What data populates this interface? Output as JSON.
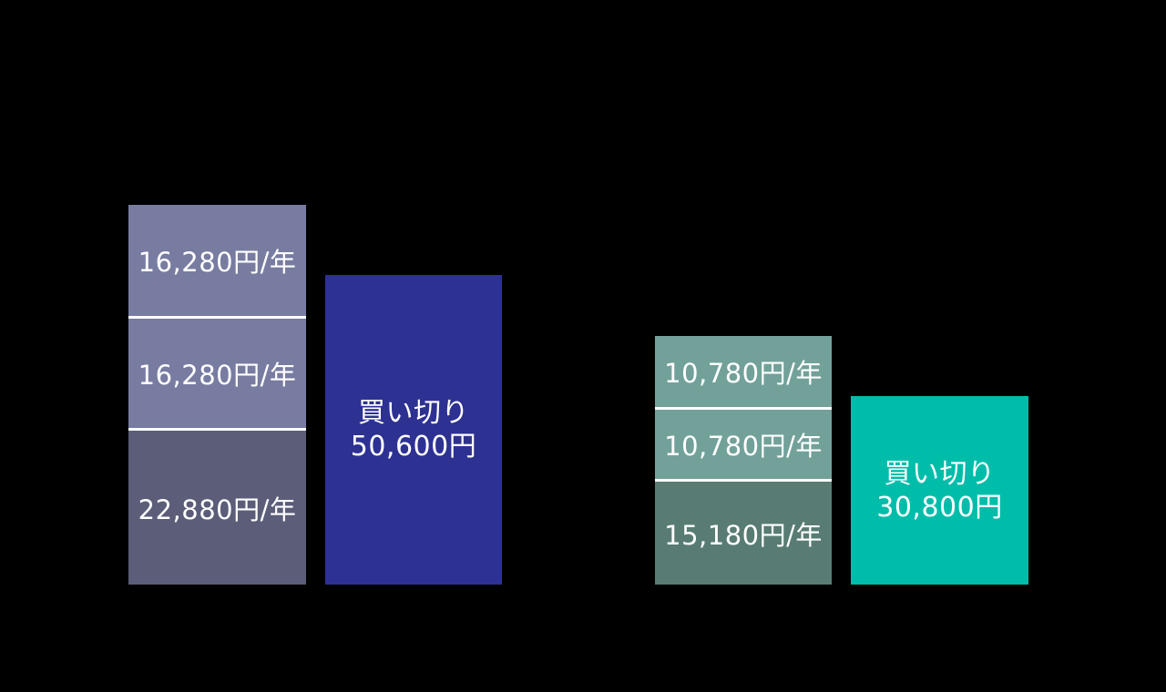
{
  "page": {
    "background_color": "#000000",
    "text_color": "#ffffff",
    "divider_color": "#ffffff"
  },
  "chart_data": {
    "type": "bar",
    "subtype": "stacked-vs-single-comparison",
    "title": "",
    "xlabel": "",
    "ylabel": "",
    "legend": "none",
    "grid": false,
    "axes_visible": false,
    "unit": "JPY",
    "groups": [
      {
        "name": "left-comparison",
        "accent_color": "#2D3192",
        "stacked_bar": {
          "total": 55440,
          "segments": [
            {
              "label": "16,280円/年",
              "value": 16280,
              "color": "#787CA1"
            },
            {
              "label": "16,280円/年",
              "value": 16280,
              "color": "#787CA1"
            },
            {
              "label": "22,880円/年",
              "value": 22880,
              "color": "#5B5D79"
            }
          ]
        },
        "solid_bar": {
          "label_line1": "買い切り",
          "label_line2": "50,600円",
          "value": 50600,
          "color": "#2D3192"
        }
      },
      {
        "name": "right-comparison",
        "accent_color": "#00BDAA",
        "stacked_bar": {
          "total": 36740,
          "segments": [
            {
              "label": "10,780円/年",
              "value": 10780,
              "color": "#72A19A"
            },
            {
              "label": "10,780円/年",
              "value": 10780,
              "color": "#72A19A"
            },
            {
              "label": "15,180円/年",
              "value": 15180,
              "color": "#587C74"
            }
          ]
        },
        "solid_bar": {
          "label_line1": "買い切り",
          "label_line2": "30,800円",
          "value": 30800,
          "color": "#00BDAA"
        }
      }
    ]
  }
}
